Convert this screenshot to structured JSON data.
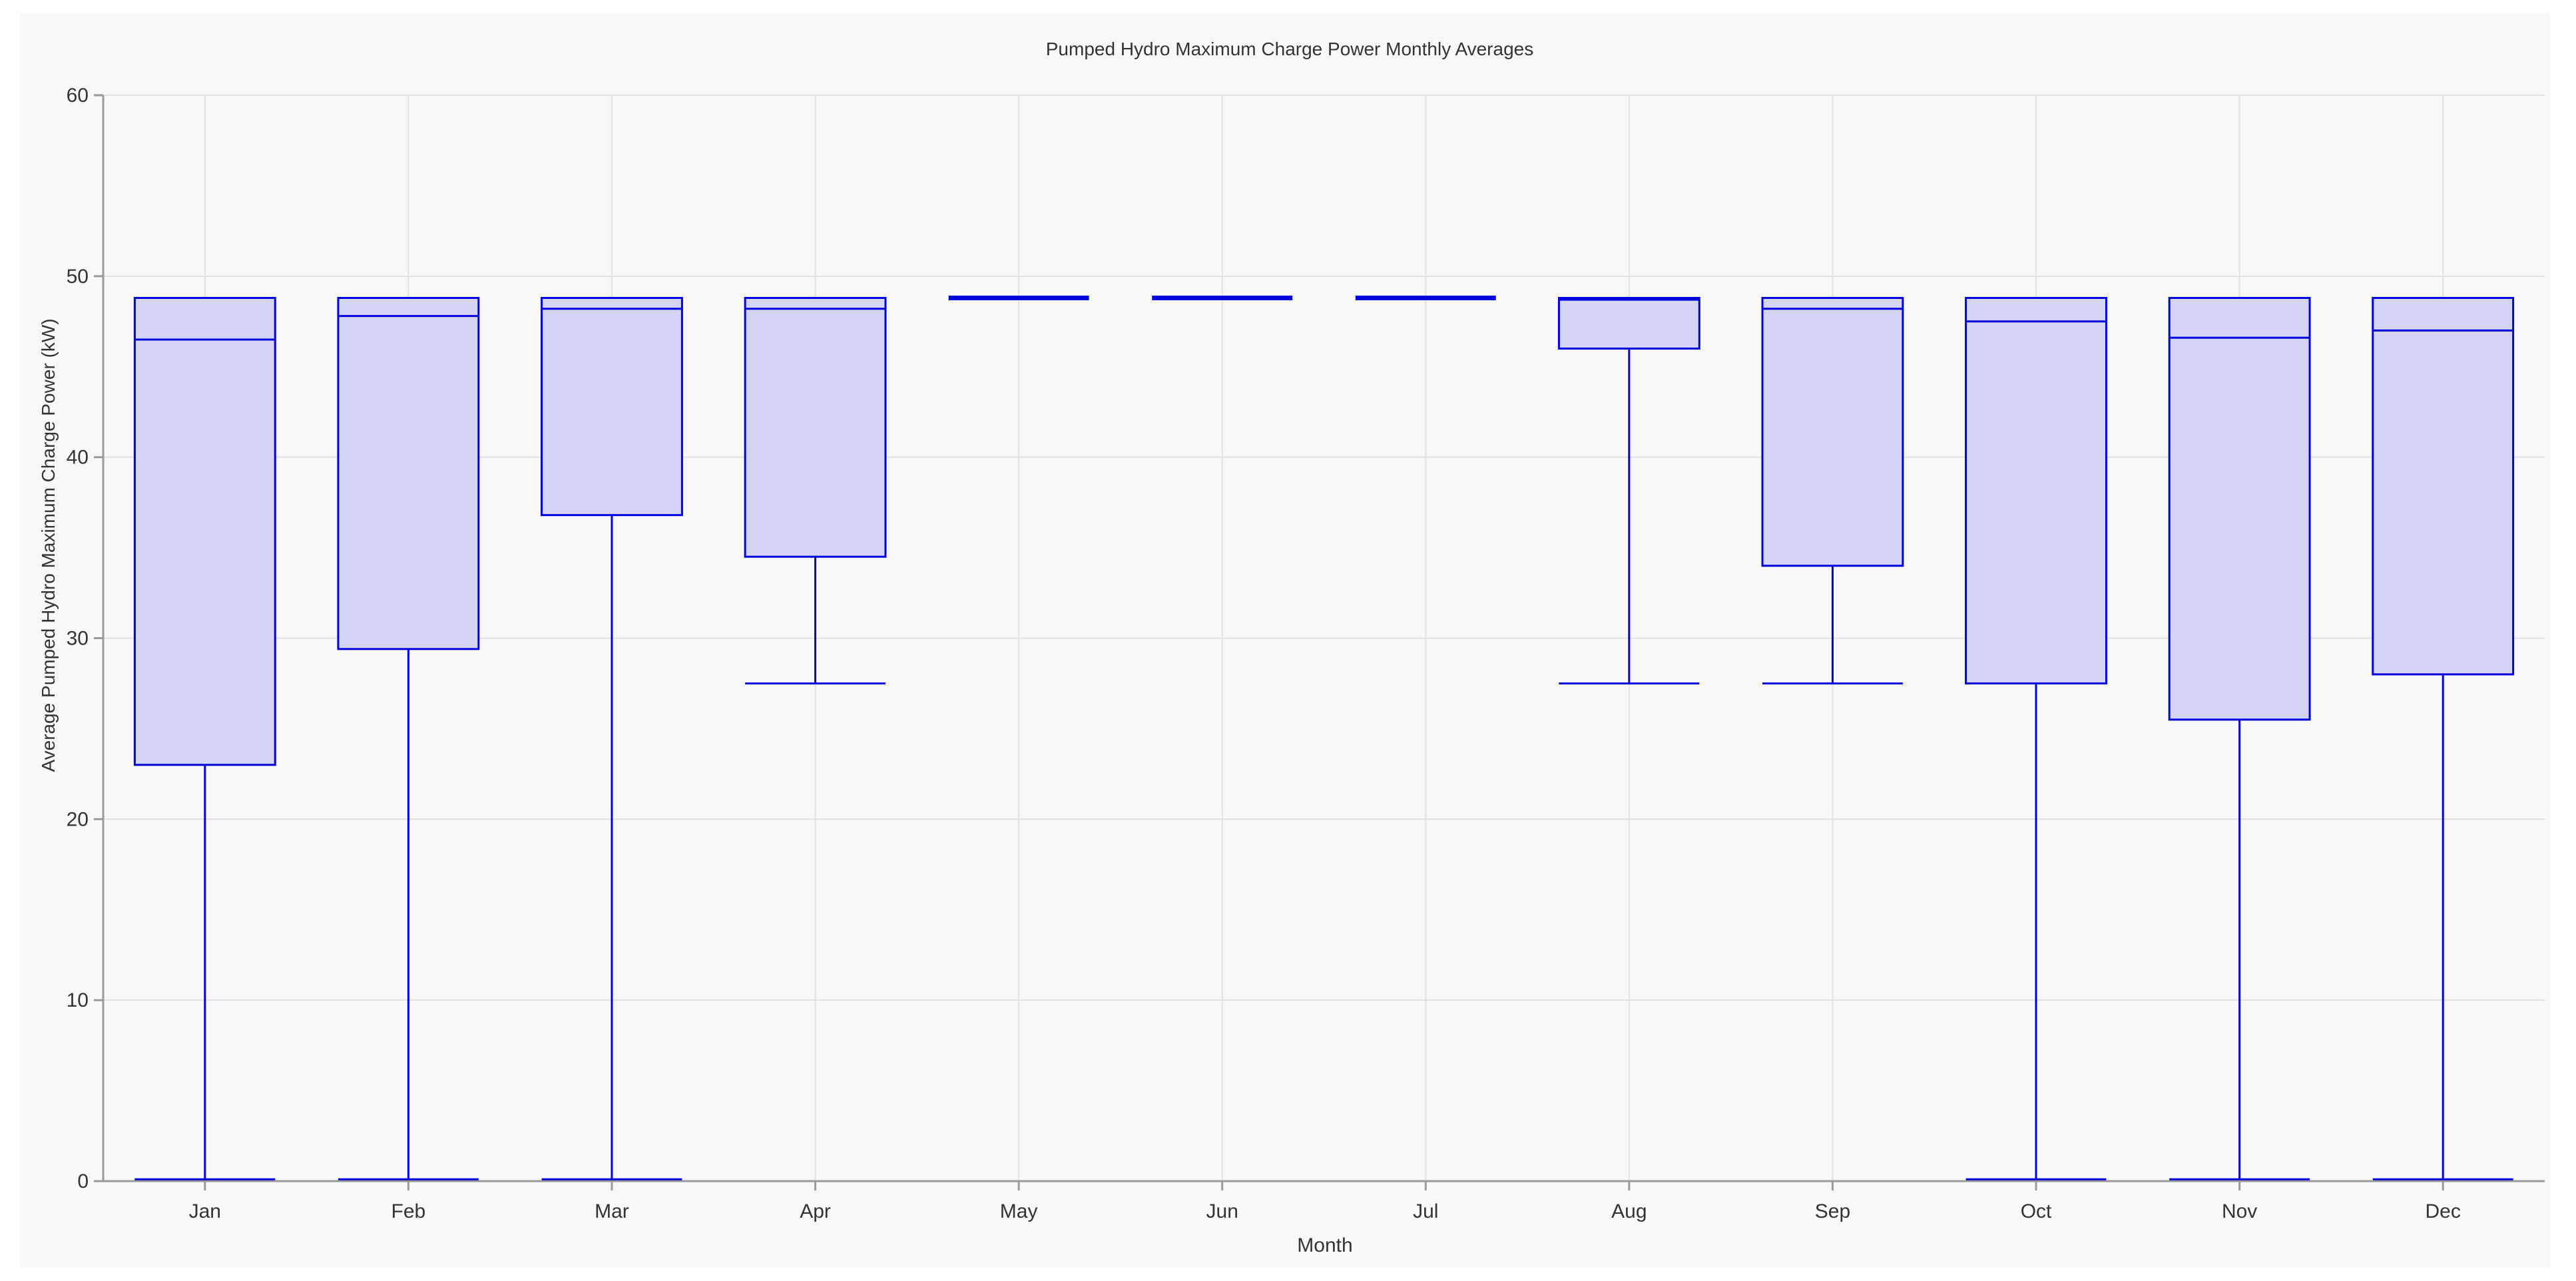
{
  "chart_data": {
    "type": "box",
    "title": "Pumped Hydro Maximum Charge Power Monthly Averages",
    "xlabel": "Month",
    "ylabel": "Average Pumped Hydro Maximum Charge Power (kW)",
    "ylim": [
      0,
      60
    ],
    "yticks": [
      0,
      10,
      20,
      30,
      40,
      50,
      60
    ],
    "grid": true,
    "categories": [
      "Jan",
      "Feb",
      "Mar",
      "Apr",
      "May",
      "Jun",
      "Jul",
      "Aug",
      "Sep",
      "Oct",
      "Nov",
      "Dec"
    ],
    "boxes": [
      {
        "label": "Jan",
        "min": 0.1,
        "q1": 23.0,
        "median": 46.5,
        "q3": 48.8,
        "max": 48.8
      },
      {
        "label": "Feb",
        "min": 0.1,
        "q1": 29.4,
        "median": 47.8,
        "q3": 48.8,
        "max": 48.8
      },
      {
        "label": "Mar",
        "min": 0.1,
        "q1": 36.8,
        "median": 48.2,
        "q3": 48.8,
        "max": 48.8
      },
      {
        "label": "Apr",
        "min": 27.5,
        "q1": 34.5,
        "median": 48.2,
        "q3": 48.8,
        "max": 48.8
      },
      {
        "label": "May",
        "min": 48.8,
        "q1": 48.8,
        "median": 48.8,
        "q3": 48.8,
        "max": 48.8
      },
      {
        "label": "Jun",
        "min": 48.8,
        "q1": 48.8,
        "median": 48.8,
        "q3": 48.8,
        "max": 48.8
      },
      {
        "label": "Jul",
        "min": 48.8,
        "q1": 48.8,
        "median": 48.8,
        "q3": 48.8,
        "max": 48.8
      },
      {
        "label": "Aug",
        "min": 27.5,
        "q1": 46.0,
        "median": 48.7,
        "q3": 48.8,
        "max": 48.8
      },
      {
        "label": "Sep",
        "min": 27.5,
        "q1": 34.0,
        "median": 48.2,
        "q3": 48.8,
        "max": 48.8
      },
      {
        "label": "Oct",
        "min": 0.1,
        "q1": 27.5,
        "median": 47.5,
        "q3": 48.8,
        "max": 48.8
      },
      {
        "label": "Nov",
        "min": 0.1,
        "q1": 25.5,
        "median": 46.6,
        "q3": 48.8,
        "max": 48.8
      },
      {
        "label": "Dec",
        "min": 0.1,
        "q1": 28.0,
        "median": 47.0,
        "q3": 48.8,
        "max": 48.8
      }
    ],
    "colors": {
      "stroke": "#0000dd",
      "fill": "#d4d4f7"
    }
  }
}
